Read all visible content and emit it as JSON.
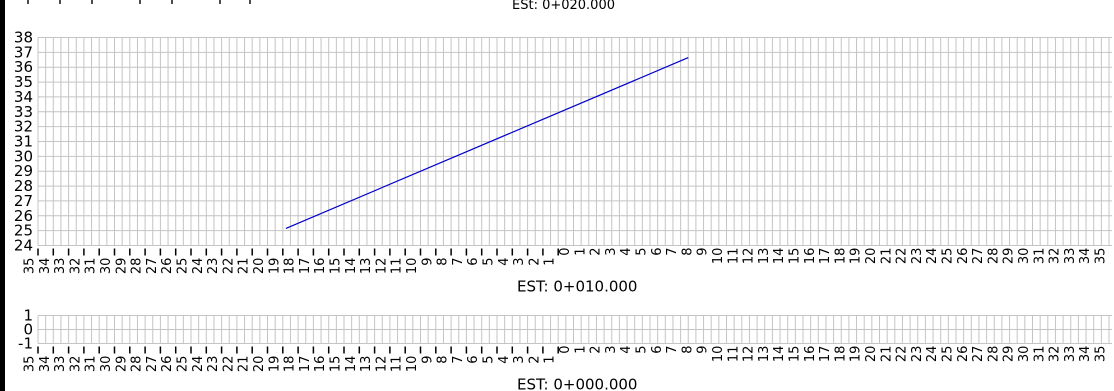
{
  "top_label": "ESt: 0+020.000",
  "stations": [
    "EST: 0+010.000",
    "EST: 0+000.000"
  ],
  "chart_data": [
    {
      "type": "line",
      "title": "",
      "xlabel": "EST: 0+010.000",
      "ylabel": "",
      "xlim": [
        -35,
        35
      ],
      "ylim": [
        24,
        38
      ],
      "y_ticks": [
        24,
        25,
        26,
        27,
        28,
        29,
        30,
        31,
        32,
        33,
        34,
        35,
        36,
        37,
        38
      ],
      "x_ticks": [
        -35,
        -34,
        -33,
        -32,
        -31,
        -30,
        -29,
        -28,
        -27,
        -26,
        -25,
        -24,
        -23,
        -22,
        -21,
        -20,
        -19,
        -18,
        -17,
        -16,
        -15,
        -14,
        -13,
        -12,
        -11,
        -10,
        -9,
        -8,
        -7,
        -6,
        -5,
        -4,
        -3,
        -2,
        -1,
        0,
        1,
        2,
        3,
        4,
        5,
        6,
        7,
        8,
        9,
        10,
        11,
        12,
        13,
        14,
        15,
        16,
        17,
        18,
        19,
        20,
        21,
        22,
        23,
        24,
        25,
        26,
        27,
        28,
        29,
        30,
        31,
        32,
        33,
        34,
        35
      ],
      "grid": true,
      "series": [
        {
          "color": "#0000cc",
          "x": [
            -18.8,
            7.5
          ],
          "y": [
            25.15,
            36.65
          ]
        }
      ]
    },
    {
      "type": "line",
      "title": "",
      "xlabel": "EST: 0+000.000",
      "ylabel": "",
      "xlim": [
        -35,
        35
      ],
      "ylim": [
        -1,
        1
      ],
      "y_ticks": [
        -1,
        0,
        1
      ],
      "x_ticks": [
        -35,
        -34,
        -33,
        -32,
        -31,
        -30,
        -29,
        -28,
        -27,
        -26,
        -25,
        -24,
        -23,
        -22,
        -21,
        -20,
        -19,
        -18,
        -17,
        -16,
        -15,
        -14,
        -13,
        -12,
        -11,
        -10,
        -9,
        -8,
        -7,
        -6,
        -5,
        -4,
        -3,
        -2,
        -1,
        0,
        1,
        2,
        3,
        4,
        5,
        6,
        7,
        8,
        9,
        10,
        11,
        12,
        13,
        14,
        15,
        16,
        17,
        18,
        19,
        20,
        21,
        22,
        23,
        24,
        25,
        26,
        27,
        28,
        29,
        30,
        31,
        32,
        33,
        34,
        35
      ],
      "grid": true,
      "series": []
    }
  ]
}
